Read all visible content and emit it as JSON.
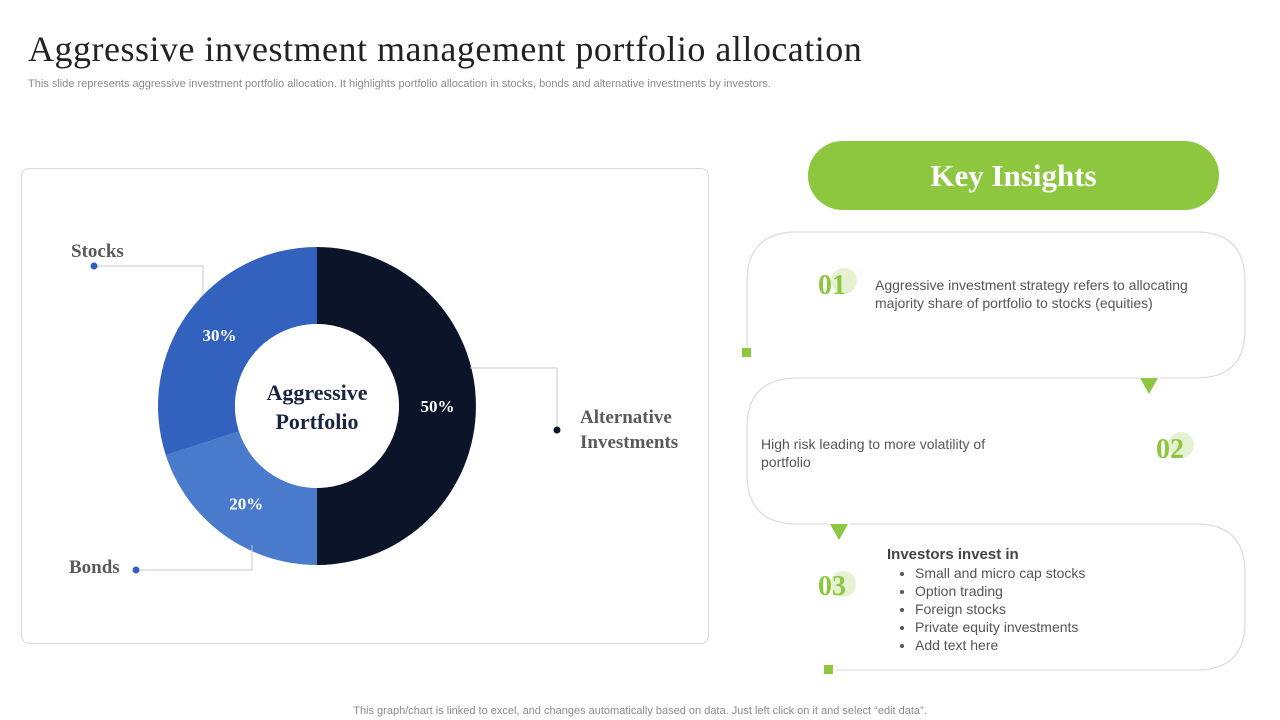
{
  "title": "Aggressive investment management portfolio allocation",
  "subtitle": "This slide represents aggressive investment portfolio allocation. It highlights portfolio allocation in stocks, bonds and alternative investments by investors.",
  "chart_data": {
    "type": "pie",
    "title": "",
    "center_label_line1": "Aggressive",
    "center_label_line2": "Portfolio",
    "categories": [
      "Alternative Investments",
      "Bonds",
      "Stocks"
    ],
    "values": [
      50,
      20,
      30
    ],
    "value_labels": [
      "50%",
      "20%",
      "30%"
    ],
    "colors": [
      "#0b1428",
      "#4a7acb",
      "#3262bd"
    ],
    "callouts": {
      "stocks": "Stocks",
      "bonds": "Bonds",
      "alternative_line1": "Alternative",
      "alternative_line2": "Investments"
    }
  },
  "insights": {
    "header": "Key Insights",
    "accent_color": "#8dc63f",
    "items": [
      {
        "number": "01",
        "text": "Aggressive investment strategy refers to allocating majority share of portfolio to stocks (equities)"
      },
      {
        "number": "02",
        "text": "High risk leading to more volatility of portfolio"
      },
      {
        "number": "03",
        "heading": "Investors invest in",
        "bullets": [
          "Small and micro cap stocks",
          "Option trading",
          "Foreign stocks",
          "Private equity investments",
          "Add text here"
        ]
      }
    ]
  },
  "footnote": "This graph/chart is linked to excel,  and changes automatically based on data. Just left click on it and select “edit data”."
}
